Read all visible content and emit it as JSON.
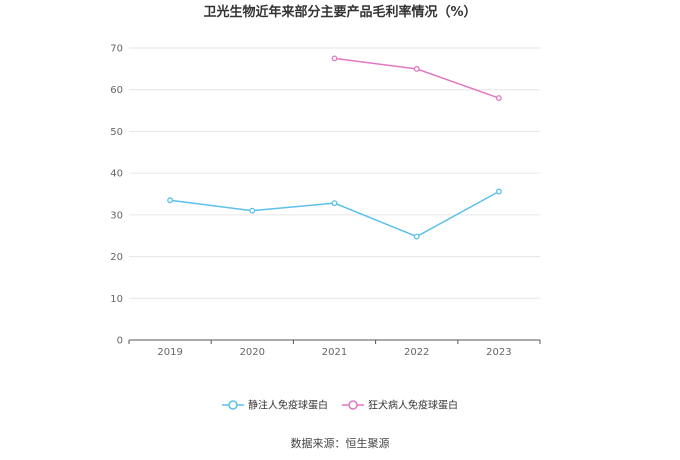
{
  "chart_data": {
    "type": "line",
    "title": "卫光生物近年来部分主要产品毛利率情况（%）",
    "x": [
      "2019",
      "2020",
      "2021",
      "2022",
      "2023"
    ],
    "ylim": [
      0,
      70
    ],
    "yticks": [
      0,
      10,
      20,
      30,
      40,
      50,
      60,
      70
    ],
    "grid": true,
    "legend_position": "bottom-center",
    "series": [
      {
        "name": "静注人免疫球蛋白",
        "color": "#5bc0eb",
        "values": [
          33.5,
          31.0,
          32.8,
          24.8,
          35.6
        ]
      },
      {
        "name": "狂犬病人免疫球蛋白",
        "color": "#e377c2",
        "values": [
          null,
          null,
          67.5,
          65.0,
          58.0
        ]
      }
    ]
  },
  "source": "数据来源：恒生聚源"
}
